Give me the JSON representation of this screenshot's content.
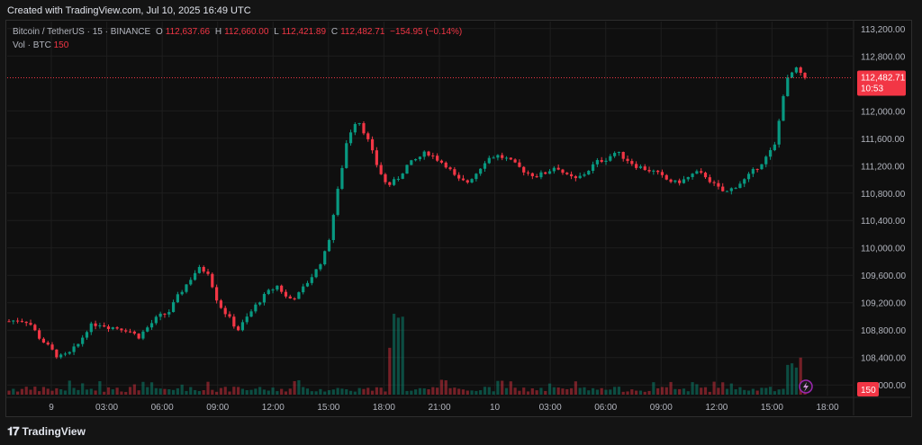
{
  "header": {
    "created_text": "Created with TradingView.com, Jul 10, 2025 16:49 UTC"
  },
  "legend": {
    "symbol": "Bitcoin / TetherUS · 15 · BINANCE",
    "open_label": "O",
    "open": "112,637.66",
    "high_label": "H",
    "high": "112,660.00",
    "low_label": "L",
    "low": "112,421.89",
    "close_label": "C",
    "close": "112,482.71",
    "change": "−154.95 (−0.14%)",
    "volume_label": "Vol · BTC",
    "volume": "150"
  },
  "price_axis": {
    "ticks": [
      "113,200.00",
      "112,800.00",
      "112,000.00",
      "111,600.00",
      "111,200.00",
      "110,800.00",
      "110,400.00",
      "110,000.00",
      "109,600.00",
      "109,200.00",
      "108,800.00",
      "108,400.00",
      "108,000.00"
    ],
    "last_price": "112,482.71",
    "countdown": "10:53",
    "volume_badge": "150"
  },
  "time_axis": {
    "ticks": [
      "9",
      "03:00",
      "06:00",
      "09:00",
      "12:00",
      "15:00",
      "18:00",
      "21:00",
      "10",
      "03:00",
      "06:00",
      "09:00",
      "12:00",
      "15:00",
      "18:00"
    ]
  },
  "footer": {
    "brand": "TradingView",
    "logo_icon": "tradingview-logo-icon"
  },
  "colors": {
    "up": "#089981",
    "down": "#f23645",
    "grid": "#1e1e1e",
    "background": "#0f0f0f"
  },
  "chart_data": {
    "type": "candlestick",
    "symbol": "Bitcoin / TetherUS",
    "interval": "15",
    "ylim": [
      107950,
      113250
    ],
    "close_path": [
      108930,
      108950,
      108920,
      108700,
      108550,
      108400,
      108450,
      108600,
      108850,
      108900,
      108850,
      108830,
      108800,
      108700,
      108850,
      109000,
      109050,
      109300,
      109500,
      109700,
      109650,
      109200,
      109000,
      108800,
      109000,
      109200,
      109350,
      109450,
      109250,
      109300,
      109500,
      109700,
      110000,
      110800,
      111600,
      111900,
      111600,
      111200,
      110900,
      111000,
      111200,
      111300,
      111400,
      111300,
      111200,
      111000,
      110950,
      111100,
      111300,
      111350,
      111300,
      111200,
      111100,
      111050,
      111100,
      111200,
      111050,
      111000,
      111100,
      111250,
      111300,
      111400,
      111300,
      111200,
      111150,
      111100,
      111000,
      110950,
      111000,
      111100,
      111050,
      110900,
      110800,
      110900,
      111000,
      111150,
      111300,
      111500,
      112400,
      112620,
      112482.71
    ],
    "volume_spikes": [
      {
        "time": "19:30",
        "relative": 1.0
      },
      {
        "time": "16:30",
        "relative": 0.55
      }
    ],
    "last": 112482.71
  }
}
